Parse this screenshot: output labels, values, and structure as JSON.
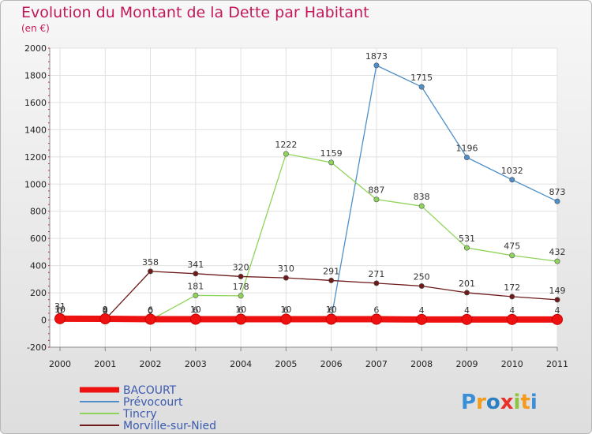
{
  "chart_data": {
    "type": "line",
    "title": "Evolution du Montant de la Dette par Habitant",
    "subtitle": "(en €)",
    "x": [
      "2000",
      "2001",
      "2002",
      "2003",
      "2004",
      "2005",
      "2006",
      "2007",
      "2008",
      "2009",
      "2010",
      "2011"
    ],
    "ylim": [
      -200,
      2000
    ],
    "yticks": [
      -200,
      0,
      200,
      400,
      600,
      800,
      1000,
      1200,
      1400,
      1600,
      1800,
      2000
    ],
    "grid": true,
    "legend": "bottom-left",
    "series": [
      {
        "name": "BACOURT",
        "color": "#ee1111",
        "values": [
          10,
          9,
          6,
          6,
          6,
          6,
          6,
          6,
          4,
          4,
          4,
          4
        ],
        "labels": [
          "10",
          "9",
          "6",
          "6",
          "6",
          "6",
          "6",
          "6",
          "4",
          "4",
          "4",
          "4"
        ]
      },
      {
        "name": "Prévocourt",
        "color": "#4f8fc9",
        "values": [
          0,
          0,
          0,
          10,
          10,
          10,
          10,
          1873,
          1715,
          1196,
          1032,
          873
        ],
        "labels": [
          "0",
          "0",
          "0",
          "10",
          "10",
          "10",
          "10",
          "1873",
          "1715",
          "1196",
          "1032",
          "873"
        ]
      },
      {
        "name": "Tincry",
        "color": "#8fd45a",
        "values": [
          0,
          0,
          0,
          181,
          178,
          1222,
          1159,
          887,
          838,
          531,
          475,
          432
        ],
        "labels": [
          "0",
          "0",
          "0",
          "181",
          "178",
          "1222",
          "1159",
          "887",
          "838",
          "531",
          "475",
          "432"
        ]
      },
      {
        "name": "Morville-sur-Nied",
        "color": "#6e1a1a",
        "values": [
          31,
          4,
          358,
          341,
          320,
          310,
          291,
          271,
          250,
          201,
          172,
          149
        ],
        "labels": [
          "31",
          "4",
          "358",
          "341",
          "320",
          "310",
          "291",
          "271",
          "250",
          "201",
          "172",
          "149"
        ]
      }
    ]
  },
  "logo": {
    "text": "Proxiti"
  }
}
